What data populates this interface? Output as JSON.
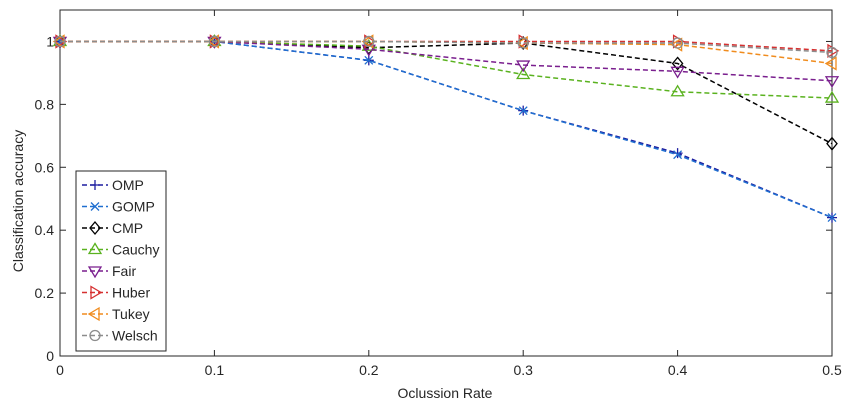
{
  "chart_data": {
    "type": "line",
    "xlabel": "Oclussion Rate",
    "ylabel": "Classification accuracy",
    "xlim": [
      0,
      0.5
    ],
    "ylim": [
      0,
      1.1
    ],
    "xticks": [
      0,
      0.1,
      0.2,
      0.3,
      0.4,
      0.5
    ],
    "xtick_labels": [
      "0",
      "0.1",
      "0.2",
      "0.3",
      "0.4",
      "0.5"
    ],
    "yticks": [
      0,
      0.2,
      0.4,
      0.6,
      0.8,
      1
    ],
    "ytick_labels": [
      "0",
      "0.2",
      "0.4",
      "0.6",
      "0.8",
      "1"
    ],
    "grid": false,
    "legend_position": "lower-left",
    "x": [
      0,
      0.1,
      0.2,
      0.3,
      0.4,
      0.5
    ],
    "series": [
      {
        "name": "OMP",
        "color": "#1f1fa0",
        "marker": "plus",
        "values": [
          1.0,
          1.0,
          0.94,
          0.78,
          0.645,
          0.44
        ]
      },
      {
        "name": "GOMP",
        "color": "#1f6fd0",
        "marker": "x",
        "values": [
          1.0,
          1.0,
          0.94,
          0.78,
          0.64,
          0.44
        ]
      },
      {
        "name": "CMP",
        "color": "#000000",
        "marker": "diamond",
        "values": [
          1.0,
          1.0,
          0.98,
          0.995,
          0.93,
          0.675
        ]
      },
      {
        "name": "Cauchy",
        "color": "#5ab21f",
        "marker": "triangle-up",
        "values": [
          1.0,
          1.0,
          0.985,
          0.895,
          0.84,
          0.82
        ]
      },
      {
        "name": "Fair",
        "color": "#7a1f8e",
        "marker": "triangle-down",
        "values": [
          1.0,
          1.0,
          0.975,
          0.925,
          0.905,
          0.875
        ]
      },
      {
        "name": "Huber",
        "color": "#d63030",
        "marker": "triangle-right",
        "values": [
          1.0,
          1.0,
          1.0,
          1.0,
          1.0,
          0.97
        ]
      },
      {
        "name": "Tukey",
        "color": "#f08c1e",
        "marker": "triangle-left",
        "values": [
          1.0,
          1.0,
          1.0,
          0.995,
          0.99,
          0.93
        ]
      },
      {
        "name": "Welsch",
        "color": "#8c8c8c",
        "marker": "circle",
        "values": [
          1.0,
          1.0,
          1.0,
          0.995,
          0.995,
          0.965
        ]
      }
    ]
  }
}
